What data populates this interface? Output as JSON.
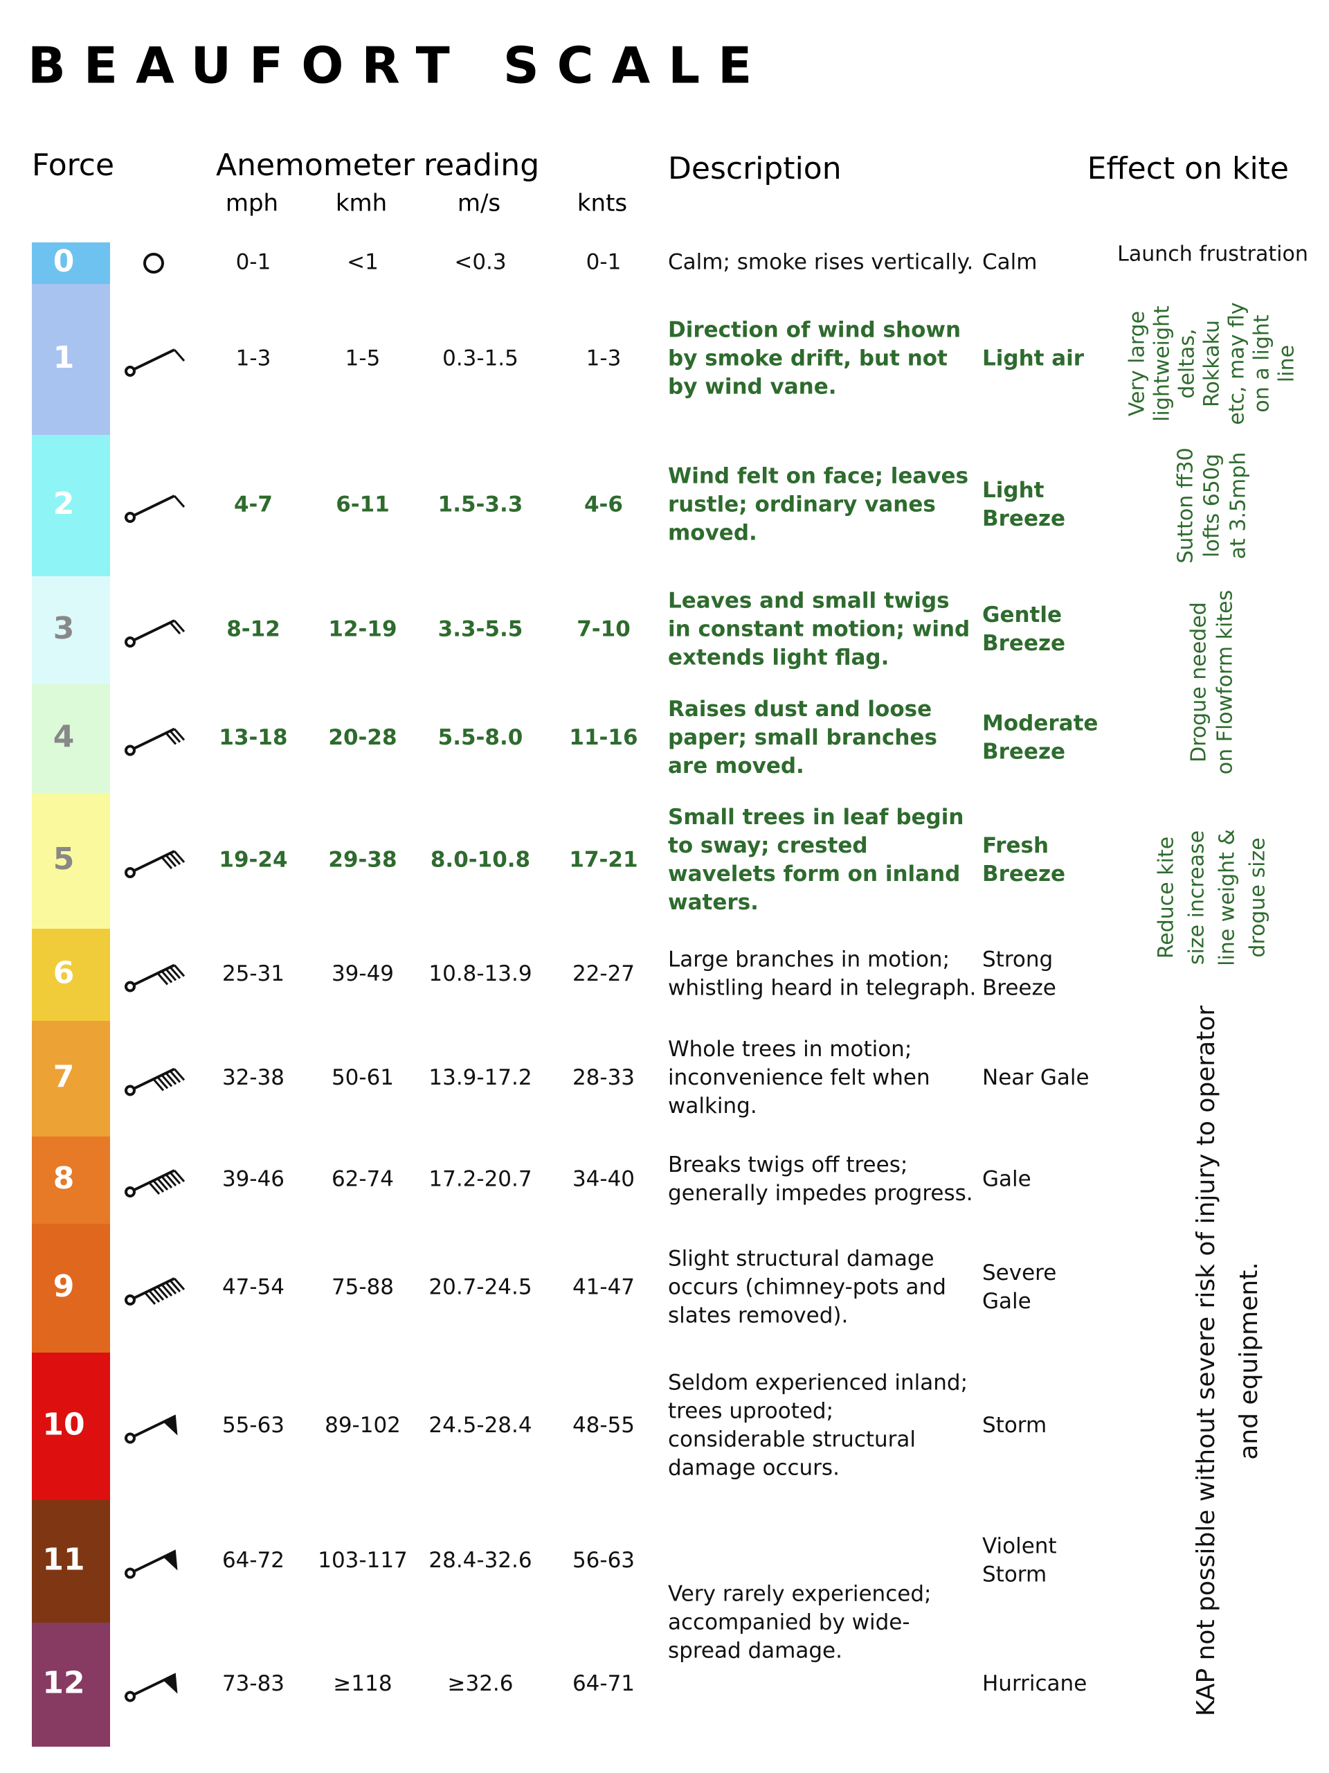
{
  "title": "BEAUFORT SCALE",
  "headers": {
    "force": "Force",
    "anemometer": "Anemometer",
    "reading": "reading",
    "description": "Description",
    "effect": "Effect on kite",
    "units": [
      "mph",
      "kmh",
      "m/s",
      "knts"
    ]
  },
  "rows": [
    {
      "force": "0",
      "bar_color": "#6ec2f0",
      "force_color": "#ffffff",
      "number_color": "#111111",
      "text_color": "#111111",
      "mph": "0-1",
      "kmh": "<1",
      "ms": "<0.3",
      "knots": "0-1",
      "description": [
        "Calm; smoke rises vertically."
      ],
      "name": [
        "Calm"
      ]
    },
    {
      "force": "1",
      "bar_color": "#a9c3f0",
      "force_color": "#ffffff",
      "number_color": "#111111",
      "text_color": "#2e6b2e",
      "mph": "1-3",
      "kmh": "1-5",
      "ms": "0.3-1.5",
      "knots": "1-3",
      "description": [
        "Direction of wind shown",
        "by smoke drift, but not",
        "by wind vane."
      ],
      "name": [
        "Light air"
      ]
    },
    {
      "force": "2",
      "bar_color": "#8ff4f5",
      "force_color": "#ffffff",
      "number_color": "#2e6b2e",
      "text_color": "#2e6b2e",
      "mph": "4-7",
      "kmh": "6-11",
      "ms": "1.5-3.3",
      "knots": "4-6",
      "description": [
        "Wind felt on face; leaves",
        "rustle; ordinary vanes",
        "moved."
      ],
      "name": [
        "Light",
        "Breeze"
      ]
    },
    {
      "force": "3",
      "bar_color": "#dcfafa",
      "force_color": "#888888",
      "number_color": "#2e6b2e",
      "text_color": "#2e6b2e",
      "mph": "8-12",
      "kmh": "12-19",
      "ms": "3.3-5.5",
      "knots": "7-10",
      "description": [
        "Leaves and small twigs",
        "in constant motion; wind",
        "extends light flag."
      ],
      "name": [
        "Gentle",
        "Breeze"
      ]
    },
    {
      "force": "4",
      "bar_color": "#dcfad8",
      "force_color": "#888888",
      "number_color": "#2e6b2e",
      "text_color": "#2e6b2e",
      "mph": "13-18",
      "kmh": "20-28",
      "ms": "5.5-8.0",
      "knots": "11-16",
      "description": [
        "Raises dust and loose",
        "paper; small branches",
        "are moved."
      ],
      "name": [
        "Moderate",
        "Breeze"
      ]
    },
    {
      "force": "5",
      "bar_color": "#fbf99e",
      "force_color": "#888888",
      "number_color": "#2e6b2e",
      "text_color": "#2e6b2e",
      "mph": "19-24",
      "kmh": "29-38",
      "ms": "8.0-10.8",
      "knots": "17-21",
      "description": [
        "Small trees in leaf begin",
        "to sway; crested",
        "wavelets form on inland",
        "waters."
      ],
      "name": [
        "Fresh",
        "Breeze"
      ]
    },
    {
      "force": "6",
      "bar_color": "#f0cc3a",
      "force_color": "#ffffff",
      "number_color": "#111111",
      "text_color": "#111111",
      "mph": "25-31",
      "kmh": "39-49",
      "ms": "10.8-13.9",
      "knots": "22-27",
      "description": [
        "Large branches in motion;",
        "whistling heard in telegraph."
      ],
      "name": [
        "Strong",
        "Breeze"
      ]
    },
    {
      "force": "7",
      "bar_color": "#eca235",
      "force_color": "#ffffff",
      "number_color": "#111111",
      "text_color": "#111111",
      "mph": "32-38",
      "kmh": "50-61",
      "ms": "13.9-17.2",
      "knots": "28-33",
      "description": [
        "Whole trees in motion;",
        "inconvenience felt when",
        "walking."
      ],
      "name": [
        "Near Gale"
      ]
    },
    {
      "force": "8",
      "bar_color": "#e67a27",
      "force_color": "#ffffff",
      "number_color": "#111111",
      "text_color": "#111111",
      "mph": "39-46",
      "kmh": "62-74",
      "ms": "17.2-20.7",
      "knots": "34-40",
      "description": [
        "Breaks twigs off trees;",
        "generally impedes progress."
      ],
      "name": [
        "Gale"
      ]
    },
    {
      "force": "9",
      "bar_color": "#e0681e",
      "force_color": "#ffffff",
      "number_color": "#111111",
      "text_color": "#111111",
      "mph": "47-54",
      "kmh": "75-88",
      "ms": "20.7-24.5",
      "knots": "41-47",
      "description": [
        "Slight structural damage",
        "occurs (chimney-pots and",
        "slates removed)."
      ],
      "name": [
        "Severe",
        "Gale"
      ]
    },
    {
      "force": "10",
      "bar_color": "#dd0f0f",
      "force_color": "#ffffff",
      "number_color": "#111111",
      "text_color": "#111111",
      "mph": "55-63",
      "kmh": "89-102",
      "ms": "24.5-28.4",
      "knots": "48-55",
      "description": [
        "Seldom experienced inland;",
        "trees uprooted;",
        "considerable structural",
        "damage occurs."
      ],
      "name": [
        "Storm"
      ]
    },
    {
      "force": "11",
      "bar_color": "#7f3613",
      "force_color": "#ffffff",
      "number_color": "#111111",
      "text_color": "#111111",
      "mph": "64-72",
      "kmh": "103-117",
      "ms": "28.4-32.6",
      "knots": "56-63",
      "description": [
        "Very rarely experienced;",
        "accompanied by wide-",
        "spread damage."
      ],
      "name": [
        "Violent",
        "Storm"
      ]
    },
    {
      "force": "12",
      "bar_color": "#873a62",
      "force_color": "#ffffff",
      "number_color": "#111111",
      "text_color": "#111111",
      "mph": "73-83",
      "kmh": "≥118",
      "ms": "≥32.6",
      "knots": "64-71",
      "name": [
        "Hurricane"
      ]
    }
  ],
  "effects": [
    {
      "lines": [
        "Launch frustration"
      ],
      "color": "#111111"
    },
    {
      "lines": [
        "Very large",
        "lightweight",
        "deltas,",
        "Rokkaku",
        "etc, may fly",
        "on a light",
        "line"
      ],
      "color": "#2e6b2e"
    },
    {
      "lines": [
        "Sutton ff30",
        "lofts 650g",
        "at 3.5mph"
      ],
      "color": "#2e6b2e"
    },
    {
      "lines": [
        "Drogue needed",
        "on Flowform kites"
      ],
      "color": "#2e6b2e"
    },
    {
      "lines": [
        "Reduce kite",
        "size  increase",
        "line weight &",
        "drogue size"
      ],
      "color": "#2e6b2e"
    },
    {
      "lines": [
        "KAP not possible without severe risk of injury to operator",
        "and equipment."
      ],
      "color": "#111111"
    }
  ]
}
